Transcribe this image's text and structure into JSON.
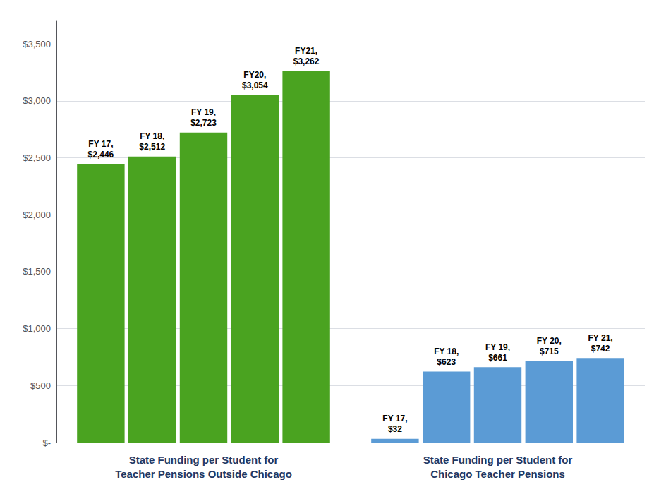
{
  "chart_data": {
    "type": "bar",
    "categories": [
      "State Funding per Student for\nTeacher Pensions Outside Chicago",
      "State Funding per Student for\nChicago Teacher Pensions"
    ],
    "series": [
      {
        "values": [
          2446,
          32
        ],
        "value_labels": [
          "FY 17,\n$2,446",
          "FY 17,\n$32"
        ],
        "colors": [
          "#4aa320",
          "#5b9bd5"
        ]
      },
      {
        "values": [
          2512,
          623
        ],
        "value_labels": [
          "FY 18,\n$2,512",
          "FY 18,\n$623"
        ],
        "colors": [
          "#4aa320",
          "#5b9bd5"
        ]
      },
      {
        "values": [
          2723,
          661
        ],
        "value_labels": [
          "FY 19,\n$2,723",
          "FY 19,\n$661"
        ],
        "colors": [
          "#4aa320",
          "#5b9bd5"
        ]
      },
      {
        "values": [
          3054,
          715
        ],
        "value_labels": [
          "FY20,\n$3,054",
          "FY 20,\n$715"
        ],
        "colors": [
          "#4aa320",
          "#5b9bd5"
        ]
      },
      {
        "values": [
          3262,
          742
        ],
        "value_labels": [
          "FY21,\n$3,262",
          "FY 21,\n$742"
        ],
        "colors": [
          "#4aa320",
          "#5b9bd5"
        ]
      }
    ],
    "ylim": [
      0,
      3700
    ],
    "yticks": [
      {
        "value": 0,
        "label": "$-"
      },
      {
        "value": 500,
        "label": "$500"
      },
      {
        "value": 1000,
        "label": "$1,000"
      },
      {
        "value": 1500,
        "label": "$1,500"
      },
      {
        "value": 2000,
        "label": "$2,000"
      },
      {
        "value": 2500,
        "label": "$2,500"
      },
      {
        "value": 3000,
        "label": "$3,000"
      },
      {
        "value": 3500,
        "label": "$3,500"
      }
    ],
    "grid": true
  }
}
